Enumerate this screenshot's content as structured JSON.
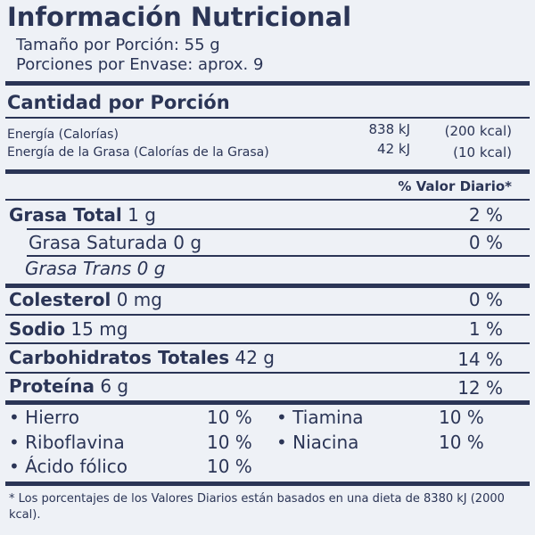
{
  "title": "Información Nutricional",
  "serving_size": "Tamaño por Porción: 55 g",
  "servings_per_container": "Porciones por Envase: aprox. 9",
  "amount_header": "Cantidad por Porción",
  "energy": [
    {
      "label": "Energía (Calorías)",
      "kj": "838 kJ",
      "kcal": "(200 kcal)"
    },
    {
      "label": "Energía de la Grasa (Calorías de la Grasa)",
      "kj": "42 kJ",
      "kcal": "(10 kcal)"
    }
  ],
  "daily_value_header": "% Valor Diario*",
  "nutrients": [
    {
      "name": "Grasa Total",
      "amount": "1 g",
      "daily_value": "2 %"
    },
    {
      "name": "Grasa Saturada",
      "amount": "0 g",
      "daily_value": "0 %"
    },
    {
      "name": "Grasa Trans",
      "amount": "0 g"
    },
    {
      "name": "Colesterol",
      "amount": "0 mg",
      "daily_value": "0 %"
    },
    {
      "name": "Sodio",
      "amount": "15 mg",
      "daily_value": "1 %"
    },
    {
      "name": "Carbohidratos Totales",
      "amount": "42 g",
      "daily_value": "14 %"
    },
    {
      "name": "Proteína",
      "amount": "6 g",
      "daily_value": "12 %"
    }
  ],
  "vitamins": [
    {
      "name": "Hierro",
      "daily_value": "10 %"
    },
    {
      "name": "Tiamina",
      "daily_value": "10 %"
    },
    {
      "name": "Riboflavina",
      "daily_value": "10 %"
    },
    {
      "name": "Niacina",
      "daily_value": "10 %"
    },
    {
      "name": "Ácido fólico",
      "daily_value": "10 %"
    }
  ],
  "footnote": "* Los porcentajes de los Valores Diarios están basados en una dieta de 8380 kJ (2000 kcal)."
}
